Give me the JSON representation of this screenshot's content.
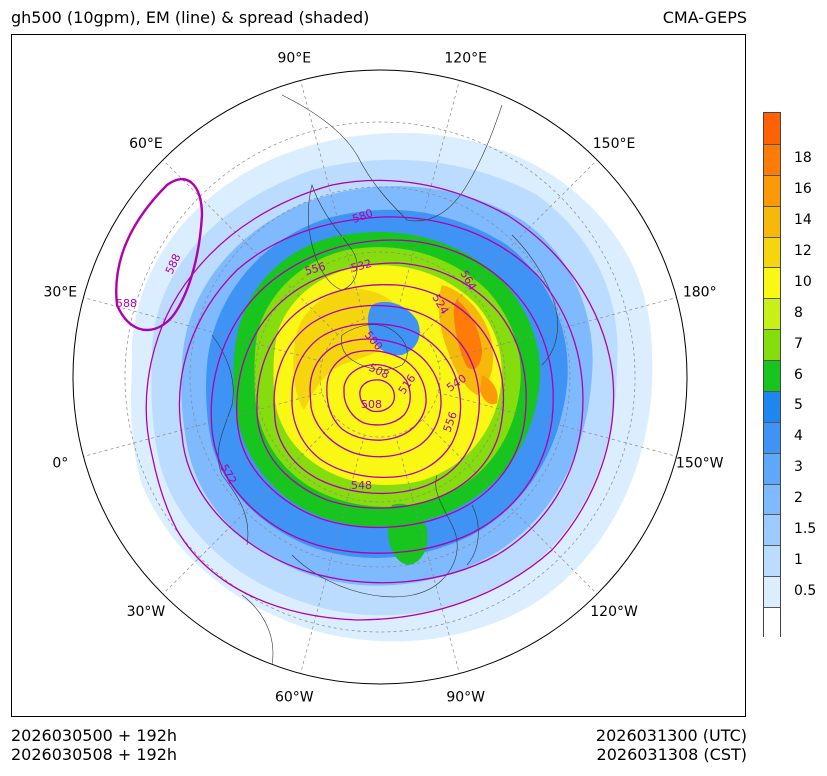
{
  "title_left": "gh500 (10gpm), EM (line) & spread (shaded)",
  "title_right": "CMA-GEPS",
  "footer": {
    "init_utc": "2026030500 + 192h",
    "init_cst": "2026030508 + 192h",
    "valid_utc": "2026031300 (UTC)",
    "valid_cst": "2026031308 (CST)"
  },
  "longitude_labels": [
    {
      "text": "60°W",
      "deg": -60
    },
    {
      "text": "90°W",
      "deg": -90
    },
    {
      "text": "120°W",
      "deg": -120
    },
    {
      "text": "150°W",
      "deg": -150
    },
    {
      "text": "180°",
      "deg": 180
    },
    {
      "text": "150°E",
      "deg": 150
    },
    {
      "text": "120°E",
      "deg": 120
    },
    {
      "text": "90°E",
      "deg": 90
    },
    {
      "text": "60°E",
      "deg": 60
    },
    {
      "text": "30°E",
      "deg": 30
    },
    {
      "text": "0°",
      "deg": 0
    },
    {
      "text": "30°W",
      "deg": -30
    }
  ],
  "contour_labels": [
    "588",
    "588",
    "580",
    "564",
    "556",
    "532",
    "524",
    "500",
    "508",
    "516",
    "540",
    "508",
    "556",
    "548",
    "572"
  ],
  "colorbar": {
    "levels": [
      {
        "label": "",
        "color": "#ffffff"
      },
      {
        "label": "0.5",
        "color": "#dbeeff"
      },
      {
        "label": "1",
        "color": "#bcdcff"
      },
      {
        "label": "1.5",
        "color": "#9dcbff"
      },
      {
        "label": "2",
        "color": "#7fbaff"
      },
      {
        "label": "3",
        "color": "#5ea7fa"
      },
      {
        "label": "4",
        "color": "#3f93f5"
      },
      {
        "label": "5",
        "color": "#1f86f0"
      },
      {
        "label": "6",
        "color": "#18c41e"
      },
      {
        "label": "7",
        "color": "#86dd0e"
      },
      {
        "label": "8",
        "color": "#c8f016"
      },
      {
        "label": "10",
        "color": "#faf715"
      },
      {
        "label": "12",
        "color": "#f5d60e"
      },
      {
        "label": "14",
        "color": "#f7b80c"
      },
      {
        "label": "16",
        "color": "#fb9a06"
      },
      {
        "label": "18",
        "color": "#fd7b06"
      },
      {
        "label": "",
        "color": "#fe6205"
      }
    ]
  },
  "colors": {
    "contour": "#b000b0",
    "graticule": "#888888",
    "coast": "#333333"
  }
}
